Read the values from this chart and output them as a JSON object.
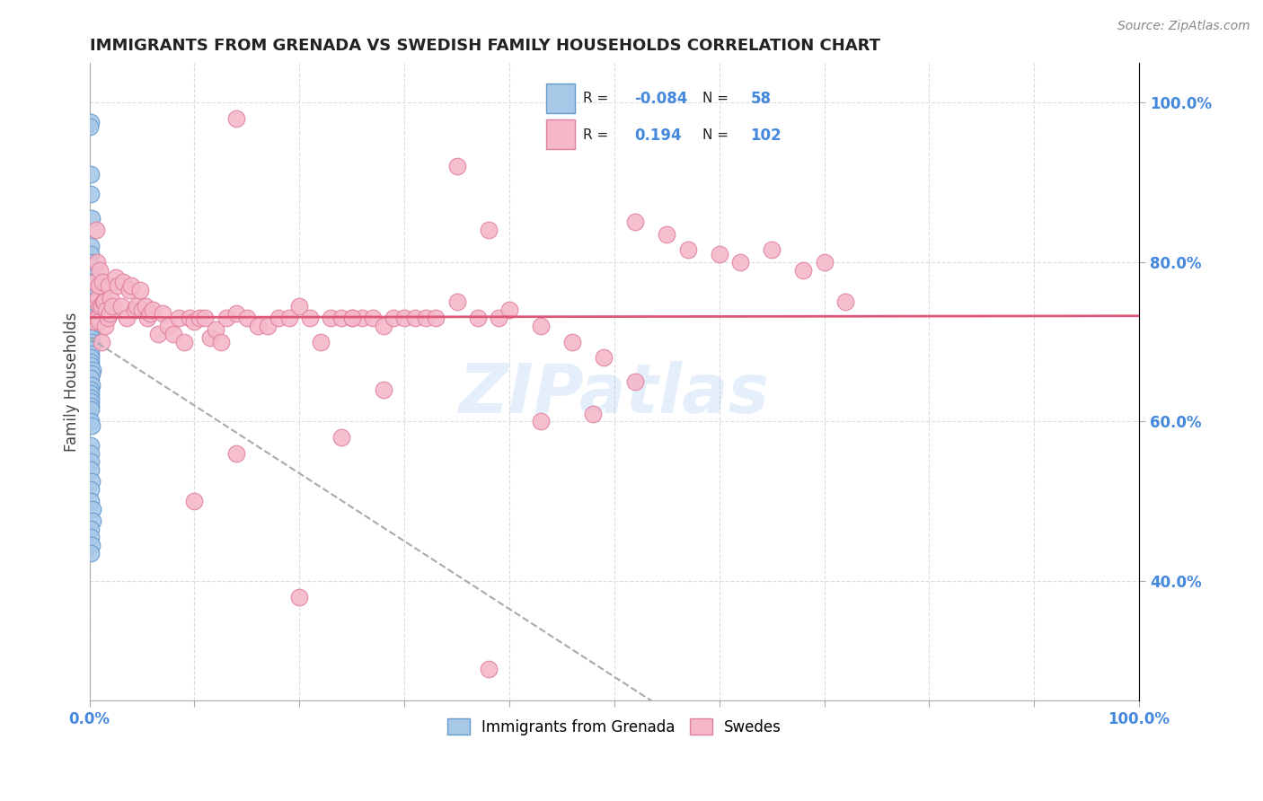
{
  "title": "IMMIGRANTS FROM GRENADA VS SWEDISH FAMILY HOUSEHOLDS CORRELATION CHART",
  "source": "Source: ZipAtlas.com",
  "ylabel": "Family Households",
  "watermark": "ZIPatlas",
  "blue_color": "#a8c8e8",
  "pink_color": "#f4b8c8",
  "blue_edge": "#6699cc",
  "pink_edge": "#e080a0",
  "blue_R": -0.084,
  "blue_N": 58,
  "pink_R": 0.194,
  "pink_N": 102,
  "blue_line_color": "#3355bb",
  "pink_line_color": "#dd5577",
  "gray_line_color": "#aaaaaa",
  "blue_scatter_x": [
    0.001,
    0.0,
    0.001,
    0.001,
    0.002,
    0.001,
    0.001,
    0.0,
    0.001,
    0.001,
    0.002,
    0.001,
    0.001,
    0.001,
    0.002,
    0.001,
    0.001,
    0.002,
    0.001,
    0.001,
    0.001,
    0.001,
    0.001,
    0.002,
    0.001,
    0.001,
    0.002,
    0.002,
    0.001,
    0.001,
    0.001,
    0.001,
    0.001,
    0.003,
    0.002,
    0.001,
    0.002,
    0.001,
    0.001,
    0.001,
    0.001,
    0.001,
    0.001,
    0.001,
    0.002,
    0.001,
    0.001,
    0.001,
    0.001,
    0.002,
    0.001,
    0.001,
    0.003,
    0.003,
    0.001,
    0.001,
    0.002,
    0.001
  ],
  "blue_scatter_y": [
    0.975,
    0.97,
    0.91,
    0.885,
    0.855,
    0.82,
    0.81,
    0.8,
    0.795,
    0.785,
    0.78,
    0.775,
    0.77,
    0.765,
    0.76,
    0.755,
    0.75,
    0.745,
    0.74,
    0.735,
    0.73,
    0.725,
    0.72,
    0.715,
    0.71,
    0.705,
    0.7,
    0.695,
    0.69,
    0.685,
    0.68,
    0.675,
    0.67,
    0.665,
    0.66,
    0.655,
    0.645,
    0.64,
    0.635,
    0.63,
    0.625,
    0.62,
    0.615,
    0.6,
    0.595,
    0.57,
    0.56,
    0.55,
    0.54,
    0.525,
    0.515,
    0.5,
    0.49,
    0.475,
    0.465,
    0.455,
    0.445,
    0.435
  ],
  "pink_scatter_x": [
    0.005,
    0.005,
    0.006,
    0.006,
    0.007,
    0.007,
    0.008,
    0.008,
    0.009,
    0.009,
    0.01,
    0.01,
    0.011,
    0.011,
    0.012,
    0.013,
    0.014,
    0.015,
    0.016,
    0.017,
    0.018,
    0.019,
    0.02,
    0.022,
    0.025,
    0.027,
    0.03,
    0.032,
    0.035,
    0.038,
    0.04,
    0.043,
    0.045,
    0.048,
    0.05,
    0.053,
    0.055,
    0.058,
    0.06,
    0.065,
    0.07,
    0.075,
    0.08,
    0.085,
    0.09,
    0.095,
    0.1,
    0.105,
    0.11,
    0.115,
    0.12,
    0.125,
    0.13,
    0.14,
    0.15,
    0.16,
    0.17,
    0.18,
    0.19,
    0.2,
    0.21,
    0.22,
    0.23,
    0.24,
    0.25,
    0.26,
    0.27,
    0.28,
    0.29,
    0.3,
    0.31,
    0.32,
    0.33,
    0.35,
    0.37,
    0.39,
    0.14,
    0.35,
    0.52,
    0.38,
    0.55,
    0.57,
    0.6,
    0.62,
    0.65,
    0.68,
    0.7,
    0.72,
    0.25,
    0.4,
    0.43,
    0.46,
    0.49,
    0.52,
    0.43,
    0.48,
    0.28,
    0.24,
    0.14,
    0.1,
    0.2,
    0.38
  ],
  "pink_scatter_y": [
    0.775,
    0.725,
    0.84,
    0.73,
    0.8,
    0.75,
    0.755,
    0.73,
    0.77,
    0.725,
    0.79,
    0.745,
    0.745,
    0.7,
    0.775,
    0.75,
    0.75,
    0.72,
    0.74,
    0.73,
    0.77,
    0.735,
    0.755,
    0.745,
    0.78,
    0.77,
    0.745,
    0.775,
    0.73,
    0.765,
    0.77,
    0.74,
    0.745,
    0.765,
    0.74,
    0.745,
    0.73,
    0.735,
    0.74,
    0.71,
    0.735,
    0.72,
    0.71,
    0.73,
    0.7,
    0.73,
    0.725,
    0.73,
    0.73,
    0.705,
    0.715,
    0.7,
    0.73,
    0.735,
    0.73,
    0.72,
    0.72,
    0.73,
    0.73,
    0.745,
    0.73,
    0.7,
    0.73,
    0.73,
    0.73,
    0.73,
    0.73,
    0.72,
    0.73,
    0.73,
    0.73,
    0.73,
    0.73,
    0.75,
    0.73,
    0.73,
    0.98,
    0.92,
    0.85,
    0.84,
    0.835,
    0.815,
    0.81,
    0.8,
    0.815,
    0.79,
    0.8,
    0.75,
    0.73,
    0.74,
    0.72,
    0.7,
    0.68,
    0.65,
    0.6,
    0.61,
    0.64,
    0.58,
    0.56,
    0.5,
    0.38,
    0.29
  ],
  "xlim": [
    0.0,
    1.0
  ],
  "ylim": [
    0.25,
    1.05
  ],
  "background": "#ffffff",
  "grid_color": "#dddddd",
  "right_tick_color": "#4488dd",
  "legend_color": "#4488dd"
}
